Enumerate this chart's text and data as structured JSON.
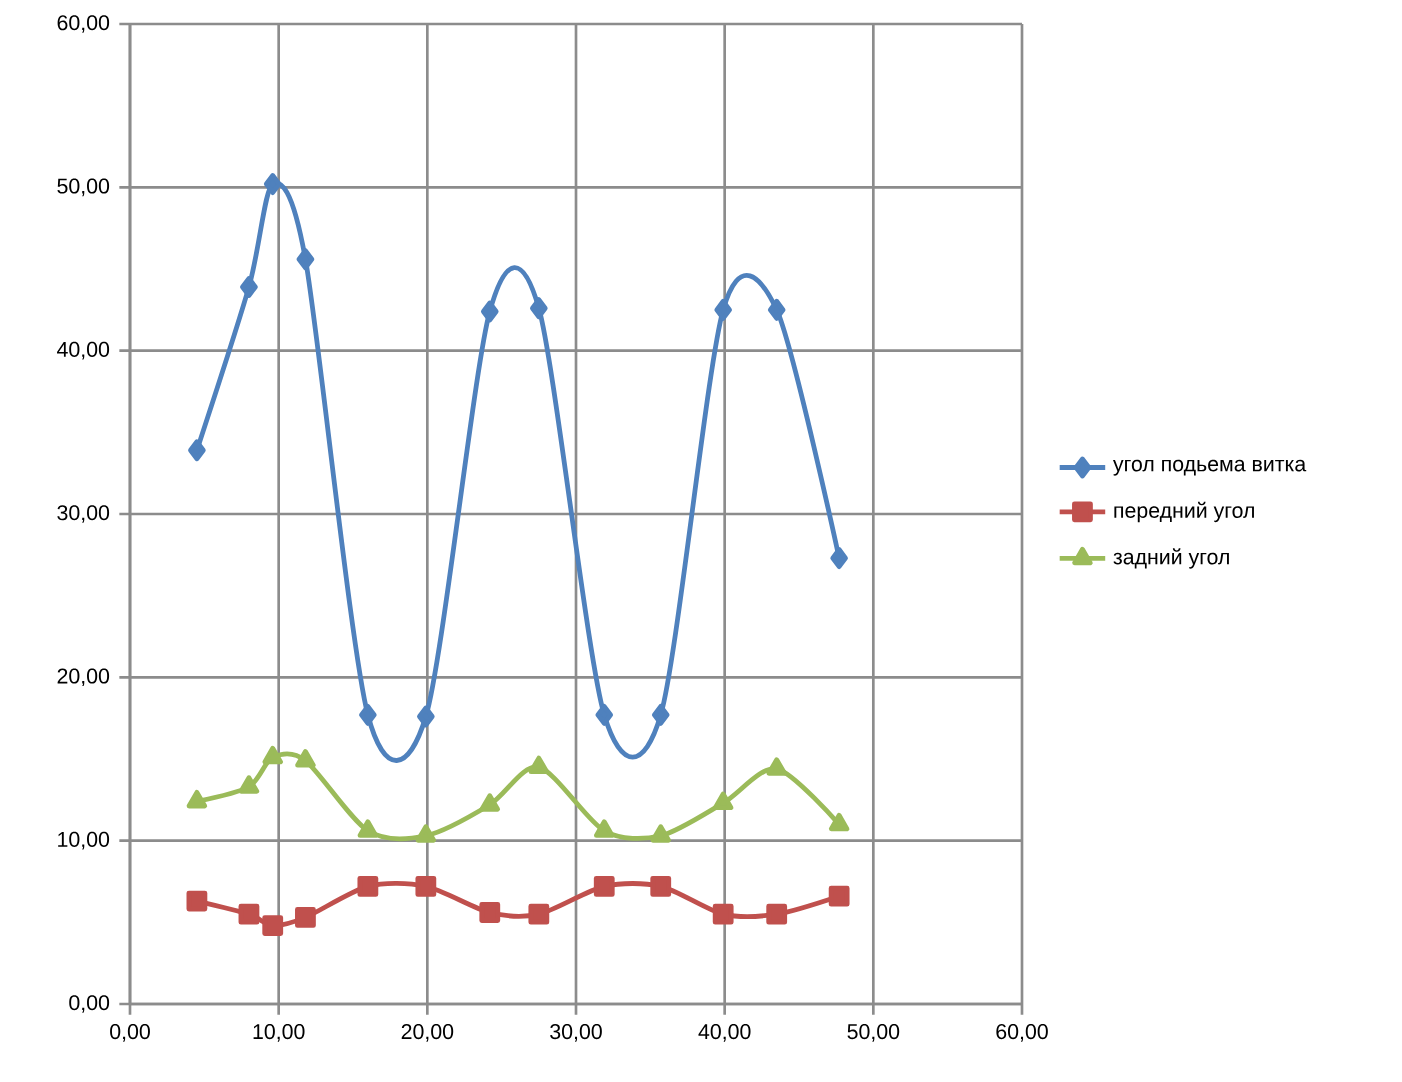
{
  "chart_data": {
    "type": "line",
    "xlim": [
      0,
      60
    ],
    "ylim": [
      0,
      60
    ],
    "xticks": [
      {
        "value": 0,
        "label": "0,00"
      },
      {
        "value": 10,
        "label": "10,00"
      },
      {
        "value": 20,
        "label": "20,00"
      },
      {
        "value": 30,
        "label": "30,00"
      },
      {
        "value": 40,
        "label": "40,00"
      },
      {
        "value": 50,
        "label": "50,00"
      },
      {
        "value": 60,
        "label": "60,00"
      }
    ],
    "yticks": [
      {
        "value": 0,
        "label": "0,00"
      },
      {
        "value": 10,
        "label": "10,00"
      },
      {
        "value": 20,
        "label": "20,00"
      },
      {
        "value": 30,
        "label": "30,00"
      },
      {
        "value": 40,
        "label": "40,00"
      },
      {
        "value": 50,
        "label": "50,00"
      },
      {
        "value": 60,
        "label": "60,00"
      }
    ],
    "grid": true,
    "legend": "right",
    "line_style": "solid",
    "x": [
      4.5,
      8.0,
      9.6,
      11.8,
      16.0,
      19.9,
      24.2,
      27.5,
      31.9,
      35.7,
      39.9,
      43.5,
      47.7
    ],
    "series": [
      {
        "name": "угол подьема витка",
        "color": "#4f81bd",
        "marker": "diamond",
        "values": [
          33.9,
          43.9,
          50.2,
          45.6,
          17.7,
          17.6,
          42.4,
          42.6,
          17.7,
          17.7,
          42.5,
          42.5,
          27.3
        ]
      },
      {
        "name": "передний угол",
        "color": "#c0504d",
        "marker": "square",
        "values": [
          6.3,
          5.5,
          4.8,
          5.3,
          7.2,
          7.2,
          5.6,
          5.5,
          7.2,
          7.2,
          5.5,
          5.5,
          6.6
        ]
      },
      {
        "name": "задний угол",
        "color": "#9bbb59",
        "marker": "triangle",
        "values": [
          12.4,
          13.3,
          15.1,
          14.9,
          10.6,
          10.3,
          12.2,
          14.5,
          10.6,
          10.3,
          12.3,
          14.4,
          11.0
        ]
      }
    ]
  }
}
